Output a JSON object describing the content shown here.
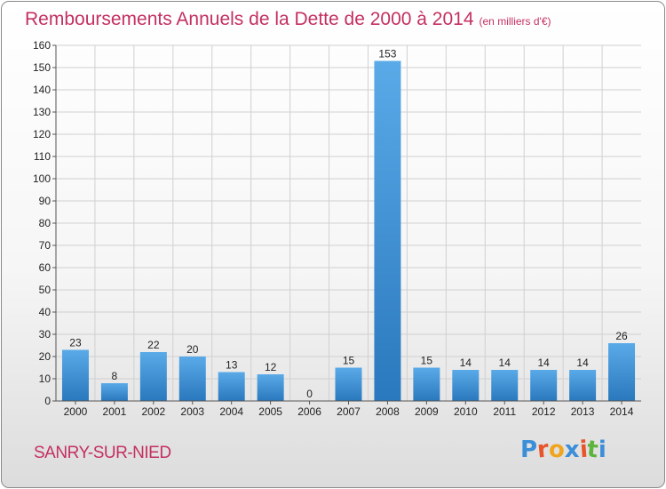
{
  "header": {
    "title": "Remboursements Annuels de la Dette de 2000 à 2014",
    "unit": "(en milliers d'€)"
  },
  "footer": {
    "place": "SANRY-SUR-NIED",
    "logo": [
      "P",
      "r",
      "o",
      "x",
      "i",
      "t",
      "i"
    ],
    "logo_colors": [
      "#3b8ed8",
      "#e8542b",
      "#f0a51e",
      "#3b8ed8",
      "#e8542b",
      "#5db33d",
      "#3b8ed8"
    ]
  },
  "colors": {
    "bar_top": "#5aaae8",
    "bar_bottom": "#2a78bd",
    "grid": "#d0d0d0",
    "axis": "#555555",
    "text": "#222222",
    "title": "#c4305f"
  },
  "chart_data": {
    "type": "bar",
    "title": "Remboursements Annuels de la Dette de 2000 à 2014",
    "subtitle": "(en milliers d'€)",
    "categories": [
      "2000",
      "2001",
      "2002",
      "2003",
      "2004",
      "2005",
      "2006",
      "2007",
      "2008",
      "2009",
      "2010",
      "2011",
      "2012",
      "2013",
      "2014"
    ],
    "values": [
      23,
      8,
      22,
      20,
      13,
      12,
      0,
      15,
      153,
      15,
      14,
      14,
      14,
      14,
      26
    ],
    "ylim": [
      0,
      160
    ],
    "yticks": [
      0,
      10,
      20,
      30,
      40,
      50,
      60,
      70,
      80,
      90,
      100,
      110,
      120,
      130,
      140,
      150,
      160
    ],
    "grid": true,
    "legend": "none"
  }
}
